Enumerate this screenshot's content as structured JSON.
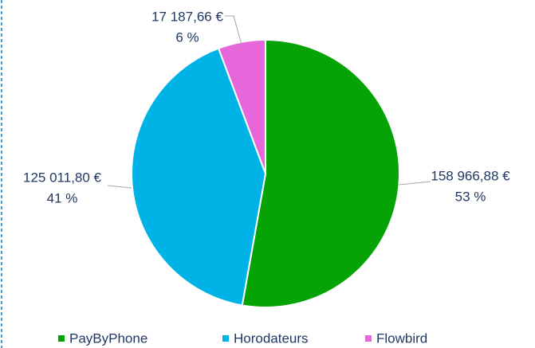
{
  "chart_data": {
    "type": "pie",
    "categories": [
      "PayByPhone",
      "Horodateurs",
      "Flowbird"
    ],
    "values": [
      158966.88,
      125011.8,
      17187.66
    ],
    "value_labels": [
      "158 966,88 €",
      "125 011,80 €",
      "17 187,66 €"
    ],
    "percent_labels": [
      "53 %",
      "41 %",
      "6 %"
    ],
    "colors": [
      "#05a305",
      "#00b3e6",
      "#e766d9"
    ],
    "legend": "bottom"
  }
}
